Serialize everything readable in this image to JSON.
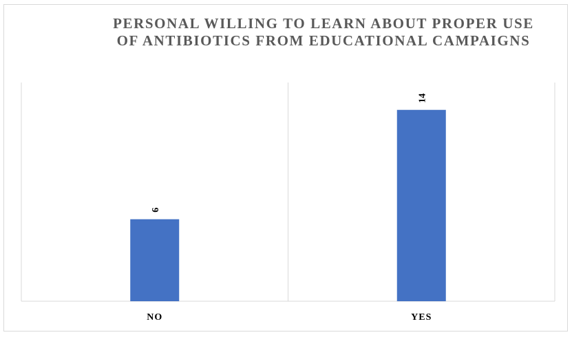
{
  "chart_data": {
    "type": "bar",
    "title": "PERSONAL WILLING TO LEARN ABOUT PROPER USE OF ANTIBIOTICS FROM EDUCATIONAL CAMPAIGNS",
    "categories": [
      "NO",
      "YES"
    ],
    "values": [
      6,
      14
    ],
    "xlabel": "",
    "ylabel": "",
    "ylim": [
      0,
      16
    ],
    "grid": "vertical category separators",
    "legend": "none",
    "bar_color": "#4472C4",
    "data_labels": true,
    "data_label_orientation": "rotated-vertical"
  }
}
